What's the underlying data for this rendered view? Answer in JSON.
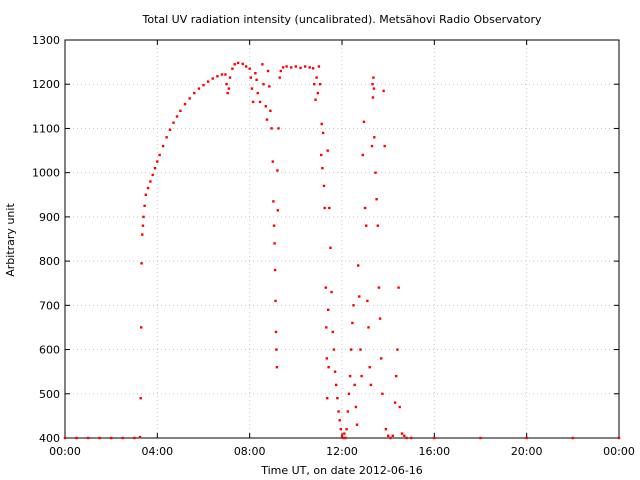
{
  "chart_data": {
    "type": "scatter",
    "title": "Total UV radiation intensity (uncalibrated). Metsähovi Radio Observatory",
    "xlabel": "Time UT, on date 2012-06-16",
    "ylabel": "Arbitrary unit",
    "xlim": [
      0,
      24
    ],
    "ylim": [
      400,
      1300
    ],
    "x_ticks": [
      {
        "value": 0,
        "label": "00:00"
      },
      {
        "value": 4,
        "label": "04:00"
      },
      {
        "value": 8,
        "label": "08:00"
      },
      {
        "value": 12,
        "label": "12:00"
      },
      {
        "value": 16,
        "label": "16:00"
      },
      {
        "value": 20,
        "label": "20:00"
      },
      {
        "value": 24,
        "label": "00:00"
      }
    ],
    "y_ticks": [
      400,
      500,
      600,
      700,
      800,
      900,
      1000,
      1100,
      1200,
      1300
    ],
    "grid": true,
    "point_color": "#ff0000",
    "series": [
      {
        "points": [
          [
            0.0,
            400
          ],
          [
            0.5,
            400
          ],
          [
            1.0,
            400
          ],
          [
            1.5,
            400
          ],
          [
            2.0,
            400
          ],
          [
            2.5,
            400
          ],
          [
            3.0,
            400
          ],
          [
            3.25,
            402
          ],
          [
            3.28,
            490
          ],
          [
            3.3,
            650
          ],
          [
            3.32,
            795
          ],
          [
            3.35,
            860
          ],
          [
            3.38,
            880
          ],
          [
            3.4,
            900
          ],
          [
            3.45,
            925
          ],
          [
            3.5,
            950
          ],
          [
            3.6,
            965
          ],
          [
            3.7,
            980
          ],
          [
            3.8,
            995
          ],
          [
            3.9,
            1010
          ],
          [
            4.0,
            1025
          ],
          [
            4.1,
            1040
          ],
          [
            4.25,
            1060
          ],
          [
            4.4,
            1080
          ],
          [
            4.55,
            1097
          ],
          [
            4.7,
            1113
          ],
          [
            4.85,
            1127
          ],
          [
            5.0,
            1140
          ],
          [
            5.2,
            1155
          ],
          [
            5.4,
            1168
          ],
          [
            5.6,
            1180
          ],
          [
            5.8,
            1190
          ],
          [
            6.0,
            1198
          ],
          [
            6.2,
            1206
          ],
          [
            6.4,
            1213
          ],
          [
            6.6,
            1218
          ],
          [
            6.8,
            1222
          ],
          [
            6.95,
            1222
          ],
          [
            7.0,
            1200
          ],
          [
            7.05,
            1180
          ],
          [
            7.1,
            1190
          ],
          [
            7.15,
            1215
          ],
          [
            7.25,
            1235
          ],
          [
            7.35,
            1245
          ],
          [
            7.5,
            1248
          ],
          [
            7.7,
            1246
          ],
          [
            7.85,
            1240
          ],
          [
            8.0,
            1235
          ],
          [
            8.05,
            1215
          ],
          [
            8.1,
            1190
          ],
          [
            8.15,
            1160
          ],
          [
            8.25,
            1225
          ],
          [
            8.3,
            1210
          ],
          [
            8.35,
            1180
          ],
          [
            8.45,
            1160
          ],
          [
            8.55,
            1245
          ],
          [
            8.6,
            1200
          ],
          [
            8.7,
            1150
          ],
          [
            8.75,
            1120
          ],
          [
            8.8,
            1230
          ],
          [
            8.85,
            1195
          ],
          [
            8.9,
            1140
          ],
          [
            8.95,
            1100
          ],
          [
            9.0,
            1025
          ],
          [
            9.03,
            935
          ],
          [
            9.06,
            880
          ],
          [
            9.08,
            840
          ],
          [
            9.1,
            780
          ],
          [
            9.12,
            710
          ],
          [
            9.14,
            640
          ],
          [
            9.16,
            600
          ],
          [
            9.18,
            560
          ],
          [
            9.2,
            1005
          ],
          [
            9.22,
            915
          ],
          [
            9.25,
            1100
          ],
          [
            9.3,
            1215
          ],
          [
            9.35,
            1230
          ],
          [
            9.45,
            1238
          ],
          [
            9.6,
            1240
          ],
          [
            9.8,
            1238
          ],
          [
            10.0,
            1240
          ],
          [
            10.2,
            1237
          ],
          [
            10.4,
            1240
          ],
          [
            10.6,
            1238
          ],
          [
            10.75,
            1236
          ],
          [
            10.8,
            1200
          ],
          [
            10.85,
            1165
          ],
          [
            10.9,
            1215
          ],
          [
            10.95,
            1180
          ],
          [
            11.0,
            1240
          ],
          [
            11.05,
            1200
          ],
          [
            11.1,
            1040
          ],
          [
            11.12,
            1110
          ],
          [
            11.15,
            1010
          ],
          [
            11.18,
            1090
          ],
          [
            11.22,
            970
          ],
          [
            11.25,
            920
          ],
          [
            11.3,
            740
          ],
          [
            11.32,
            650
          ],
          [
            11.34,
            580
          ],
          [
            11.36,
            490
          ],
          [
            11.38,
            1050
          ],
          [
            11.4,
            690
          ],
          [
            11.42,
            560
          ],
          [
            11.45,
            920
          ],
          [
            11.5,
            830
          ],
          [
            11.55,
            730
          ],
          [
            11.6,
            640
          ],
          [
            11.65,
            600
          ],
          [
            11.7,
            550
          ],
          [
            11.75,
            520
          ],
          [
            11.8,
            490
          ],
          [
            11.85,
            460
          ],
          [
            11.9,
            440
          ],
          [
            11.95,
            420
          ],
          [
            12.0,
            405
          ],
          [
            12.05,
            400
          ],
          [
            12.1,
            410
          ],
          [
            12.15,
            400
          ],
          [
            12.2,
            420
          ],
          [
            12.25,
            460
          ],
          [
            12.3,
            500
          ],
          [
            12.35,
            540
          ],
          [
            12.4,
            600
          ],
          [
            12.45,
            660
          ],
          [
            12.5,
            700
          ],
          [
            12.55,
            520
          ],
          [
            12.6,
            470
          ],
          [
            12.65,
            430
          ],
          [
            12.7,
            790
          ],
          [
            12.75,
            720
          ],
          [
            12.8,
            600
          ],
          [
            12.85,
            540
          ],
          [
            12.9,
            1040
          ],
          [
            12.95,
            1115
          ],
          [
            13.0,
            920
          ],
          [
            13.05,
            880
          ],
          [
            13.1,
            710
          ],
          [
            13.15,
            650
          ],
          [
            13.2,
            560
          ],
          [
            13.25,
            520
          ],
          [
            13.3,
            1060
          ],
          [
            13.32,
            1200
          ],
          [
            13.34,
            1170
          ],
          [
            13.36,
            1215
          ],
          [
            13.38,
            1190
          ],
          [
            13.4,
            1080
          ],
          [
            13.45,
            1000
          ],
          [
            13.5,
            940
          ],
          [
            13.55,
            880
          ],
          [
            13.6,
            740
          ],
          [
            13.65,
            670
          ],
          [
            13.7,
            580
          ],
          [
            13.75,
            500
          ],
          [
            13.8,
            1185
          ],
          [
            13.85,
            1060
          ],
          [
            13.9,
            420
          ],
          [
            14.0,
            405
          ],
          [
            14.1,
            400
          ],
          [
            14.2,
            405
          ],
          [
            14.3,
            480
          ],
          [
            14.35,
            540
          ],
          [
            14.4,
            600
          ],
          [
            14.45,
            740
          ],
          [
            14.5,
            470
          ],
          [
            14.6,
            410
          ],
          [
            14.7,
            405
          ],
          [
            14.8,
            400
          ],
          [
            15.0,
            400
          ],
          [
            16.0,
            400
          ],
          [
            18.0,
            400
          ],
          [
            20.0,
            400
          ],
          [
            22.0,
            400
          ],
          [
            24.0,
            400
          ]
        ]
      }
    ]
  }
}
